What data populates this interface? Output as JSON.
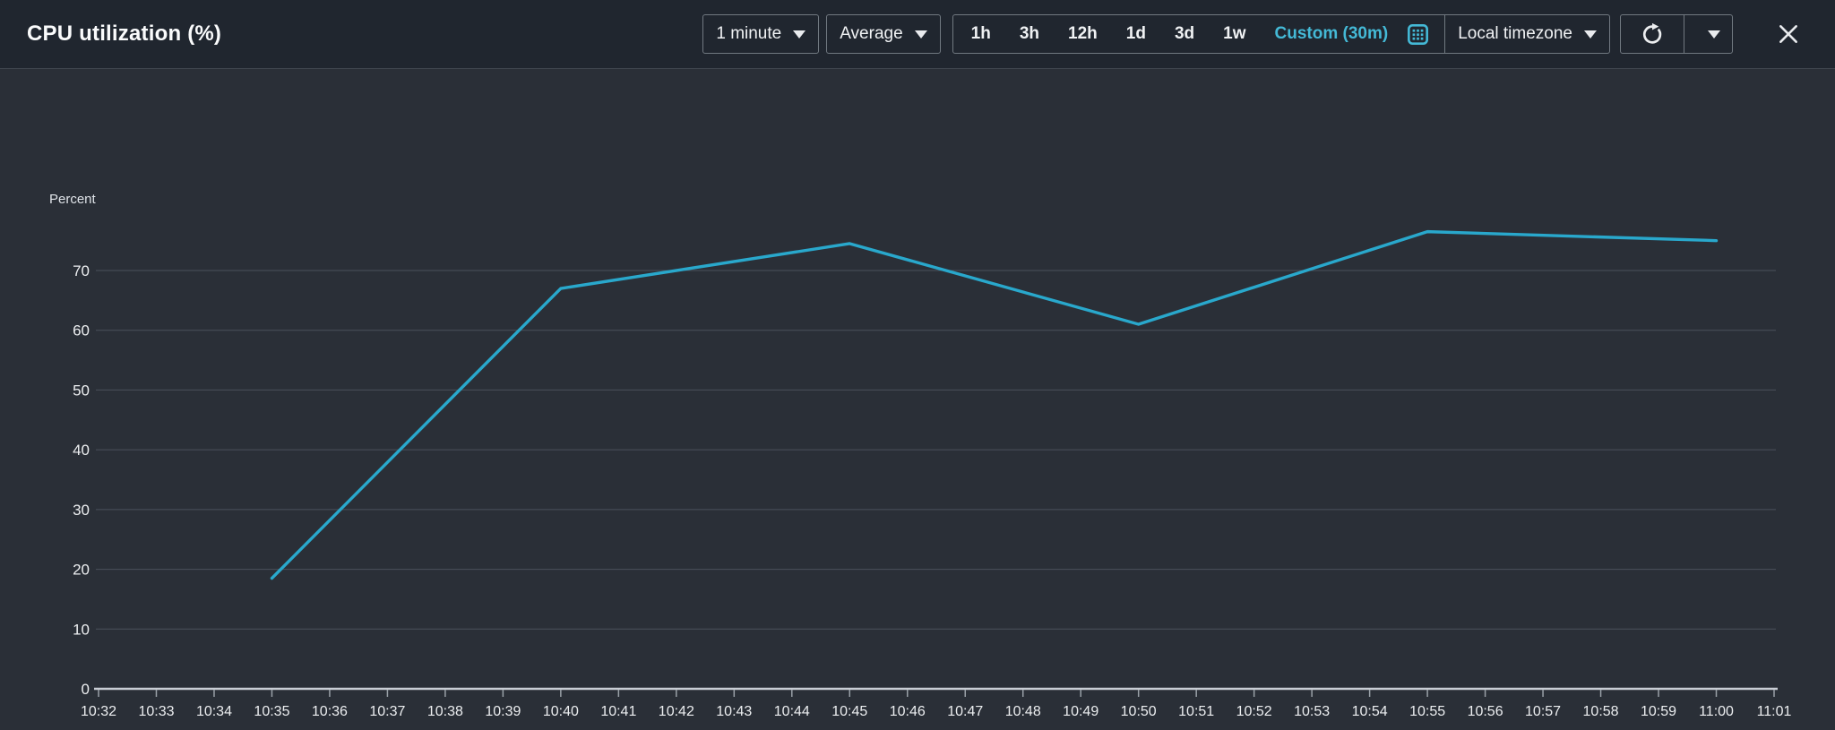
{
  "header": {
    "title": "CPU utilization (%)",
    "period_label": "1 minute",
    "statistic_label": "Average",
    "ranges": [
      "1h",
      "3h",
      "12h",
      "1d",
      "3d",
      "1w"
    ],
    "custom_label": "Custom (30m)",
    "timezone_label": "Local timezone"
  },
  "icons": {
    "chevron_down": "triangle-down",
    "calendar": "grid-calendar",
    "refresh": "clockwise-circle-arrow",
    "close": "x-cross"
  },
  "colors": {
    "accent": "#44b9d6",
    "line": "#29a8cc",
    "header_bg": "#20262f",
    "body_bg": "#2a2f37",
    "grid": "#4a515b",
    "axis": "#c9ced5",
    "border": "#717981",
    "text": "#f0f2f4"
  },
  "chart_data": {
    "type": "line",
    "title": "CPU utilization (%)",
    "xlabel": "",
    "ylabel": "Percent",
    "ylim": [
      0,
      80
    ],
    "yticks": [
      0,
      10,
      20,
      30,
      40,
      50,
      60,
      70
    ],
    "grid": true,
    "legend": false,
    "x_ticks": [
      "10:32",
      "10:33",
      "10:34",
      "10:35",
      "10:36",
      "10:37",
      "10:38",
      "10:39",
      "10:40",
      "10:41",
      "10:42",
      "10:43",
      "10:44",
      "10:45",
      "10:46",
      "10:47",
      "10:48",
      "10:49",
      "10:50",
      "10:51",
      "10:52",
      "10:53",
      "10:54",
      "10:55",
      "10:56",
      "10:57",
      "10:58",
      "10:59",
      "11:00",
      "11:01"
    ],
    "series": [
      {
        "color": "#29a8cc",
        "points": [
          [
            "10:35",
            18.5
          ],
          [
            "10:40",
            67
          ],
          [
            "10:45",
            74.5
          ],
          [
            "10:50",
            61
          ],
          [
            "10:55",
            76.5
          ],
          [
            "11:00",
            75
          ]
        ]
      }
    ]
  }
}
